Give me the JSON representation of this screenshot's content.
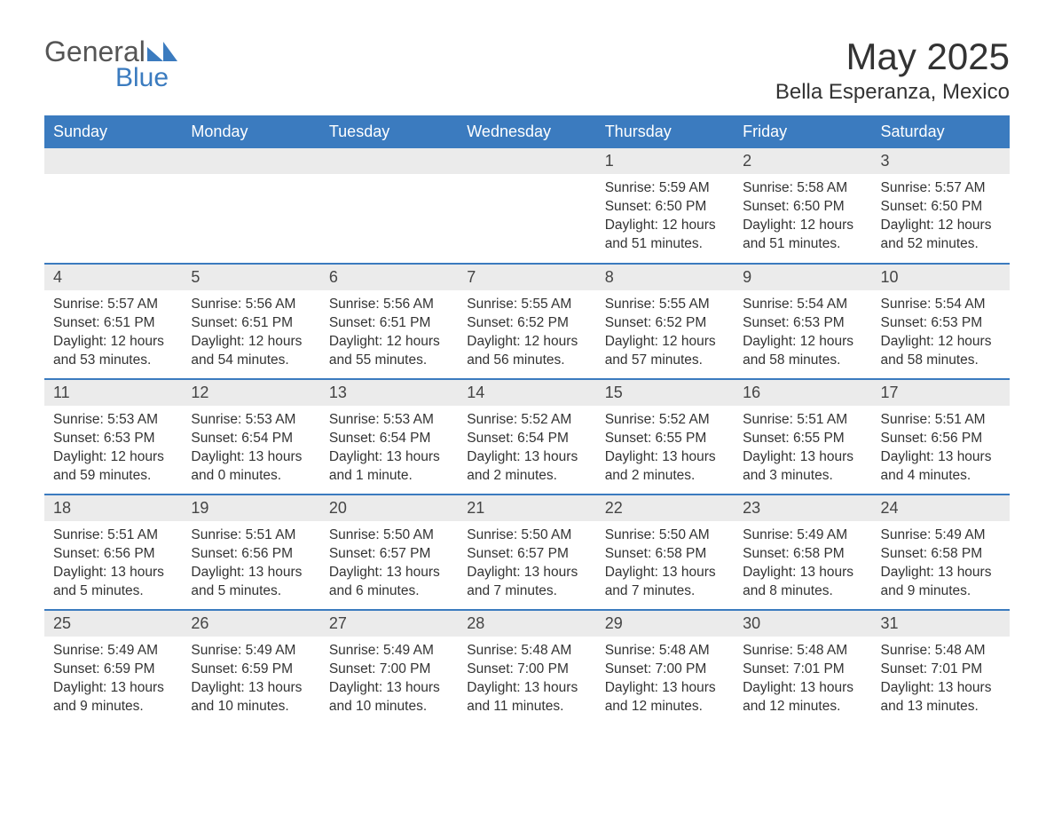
{
  "logo": {
    "text_general": "General",
    "text_blue": "Blue"
  },
  "header": {
    "month_title": "May 2025",
    "location": "Bella Esperanza, Mexico"
  },
  "colors": {
    "header_bg": "#3b7bbf",
    "header_text": "#ffffff",
    "day_number_bg": "#ebebeb",
    "body_text": "#333333",
    "row_border": "#3b7bbf",
    "page_bg": "#ffffff"
  },
  "day_headers": [
    "Sunday",
    "Monday",
    "Tuesday",
    "Wednesday",
    "Thursday",
    "Friday",
    "Saturday"
  ],
  "weeks": [
    [
      null,
      null,
      null,
      null,
      {
        "n": "1",
        "sunrise": "5:59 AM",
        "sunset": "6:50 PM",
        "daylight": "12 hours and 51 minutes."
      },
      {
        "n": "2",
        "sunrise": "5:58 AM",
        "sunset": "6:50 PM",
        "daylight": "12 hours and 51 minutes."
      },
      {
        "n": "3",
        "sunrise": "5:57 AM",
        "sunset": "6:50 PM",
        "daylight": "12 hours and 52 minutes."
      }
    ],
    [
      {
        "n": "4",
        "sunrise": "5:57 AM",
        "sunset": "6:51 PM",
        "daylight": "12 hours and 53 minutes."
      },
      {
        "n": "5",
        "sunrise": "5:56 AM",
        "sunset": "6:51 PM",
        "daylight": "12 hours and 54 minutes."
      },
      {
        "n": "6",
        "sunrise": "5:56 AM",
        "sunset": "6:51 PM",
        "daylight": "12 hours and 55 minutes."
      },
      {
        "n": "7",
        "sunrise": "5:55 AM",
        "sunset": "6:52 PM",
        "daylight": "12 hours and 56 minutes."
      },
      {
        "n": "8",
        "sunrise": "5:55 AM",
        "sunset": "6:52 PM",
        "daylight": "12 hours and 57 minutes."
      },
      {
        "n": "9",
        "sunrise": "5:54 AM",
        "sunset": "6:53 PM",
        "daylight": "12 hours and 58 minutes."
      },
      {
        "n": "10",
        "sunrise": "5:54 AM",
        "sunset": "6:53 PM",
        "daylight": "12 hours and 58 minutes."
      }
    ],
    [
      {
        "n": "11",
        "sunrise": "5:53 AM",
        "sunset": "6:53 PM",
        "daylight": "12 hours and 59 minutes."
      },
      {
        "n": "12",
        "sunrise": "5:53 AM",
        "sunset": "6:54 PM",
        "daylight": "13 hours and 0 minutes."
      },
      {
        "n": "13",
        "sunrise": "5:53 AM",
        "sunset": "6:54 PM",
        "daylight": "13 hours and 1 minute."
      },
      {
        "n": "14",
        "sunrise": "5:52 AM",
        "sunset": "6:54 PM",
        "daylight": "13 hours and 2 minutes."
      },
      {
        "n": "15",
        "sunrise": "5:52 AM",
        "sunset": "6:55 PM",
        "daylight": "13 hours and 2 minutes."
      },
      {
        "n": "16",
        "sunrise": "5:51 AM",
        "sunset": "6:55 PM",
        "daylight": "13 hours and 3 minutes."
      },
      {
        "n": "17",
        "sunrise": "5:51 AM",
        "sunset": "6:56 PM",
        "daylight": "13 hours and 4 minutes."
      }
    ],
    [
      {
        "n": "18",
        "sunrise": "5:51 AM",
        "sunset": "6:56 PM",
        "daylight": "13 hours and 5 minutes."
      },
      {
        "n": "19",
        "sunrise": "5:51 AM",
        "sunset": "6:56 PM",
        "daylight": "13 hours and 5 minutes."
      },
      {
        "n": "20",
        "sunrise": "5:50 AM",
        "sunset": "6:57 PM",
        "daylight": "13 hours and 6 minutes."
      },
      {
        "n": "21",
        "sunrise": "5:50 AM",
        "sunset": "6:57 PM",
        "daylight": "13 hours and 7 minutes."
      },
      {
        "n": "22",
        "sunrise": "5:50 AM",
        "sunset": "6:58 PM",
        "daylight": "13 hours and 7 minutes."
      },
      {
        "n": "23",
        "sunrise": "5:49 AM",
        "sunset": "6:58 PM",
        "daylight": "13 hours and 8 minutes."
      },
      {
        "n": "24",
        "sunrise": "5:49 AM",
        "sunset": "6:58 PM",
        "daylight": "13 hours and 9 minutes."
      }
    ],
    [
      {
        "n": "25",
        "sunrise": "5:49 AM",
        "sunset": "6:59 PM",
        "daylight": "13 hours and 9 minutes."
      },
      {
        "n": "26",
        "sunrise": "5:49 AM",
        "sunset": "6:59 PM",
        "daylight": "13 hours and 10 minutes."
      },
      {
        "n": "27",
        "sunrise": "5:49 AM",
        "sunset": "7:00 PM",
        "daylight": "13 hours and 10 minutes."
      },
      {
        "n": "28",
        "sunrise": "5:48 AM",
        "sunset": "7:00 PM",
        "daylight": "13 hours and 11 minutes."
      },
      {
        "n": "29",
        "sunrise": "5:48 AM",
        "sunset": "7:00 PM",
        "daylight": "13 hours and 12 minutes."
      },
      {
        "n": "30",
        "sunrise": "5:48 AM",
        "sunset": "7:01 PM",
        "daylight": "13 hours and 12 minutes."
      },
      {
        "n": "31",
        "sunrise": "5:48 AM",
        "sunset": "7:01 PM",
        "daylight": "13 hours and 13 minutes."
      }
    ]
  ],
  "labels": {
    "sunrise_prefix": "Sunrise: ",
    "sunset_prefix": "Sunset: ",
    "daylight_prefix": "Daylight: "
  }
}
